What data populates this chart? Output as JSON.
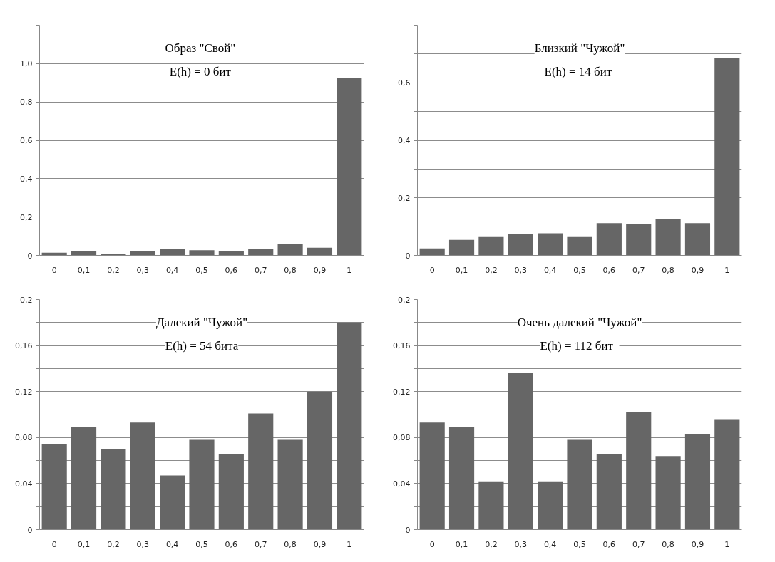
{
  "chart_data": [
    {
      "type": "bar",
      "categories": [
        "0",
        "0,1",
        "0,2",
        "0,3",
        "0,4",
        "0,5",
        "0,6",
        "0,7",
        "0,8",
        "0,9",
        "1"
      ],
      "values": [
        0.014,
        0.02,
        0.007,
        0.02,
        0.034,
        0.027,
        0.02,
        0.034,
        0.06,
        0.04,
        0.924
      ],
      "color": "#666666",
      "ylim": [
        0,
        1.2
      ],
      "yticks": [
        {
          "value": 0,
          "label": "0"
        },
        {
          "value": 0.2,
          "label": "0,2"
        },
        {
          "value": 0.4,
          "label": "0,4"
        },
        {
          "value": 0.6,
          "label": "0,6"
        },
        {
          "value": 0.8,
          "label": "0,8"
        },
        {
          "value": 1.0,
          "label": "1,0"
        },
        {
          "value": 1.2,
          "label": null
        }
      ],
      "grid": "y",
      "annotations": [
        "Образ  \"Свой\"",
        "E(h) = 0  бит"
      ]
    },
    {
      "type": "bar",
      "categories": [
        "0",
        "0,1",
        "0,2",
        "0,3",
        "0,4",
        "0,5",
        "0,6",
        "0,7",
        "0,8",
        "0,9",
        "1"
      ],
      "values": [
        0.024,
        0.054,
        0.064,
        0.074,
        0.077,
        0.064,
        0.112,
        0.108,
        0.126,
        0.112,
        0.686
      ],
      "color": "#666666",
      "ylim": [
        0,
        0.8
      ],
      "yticks": [
        {
          "value": 0,
          "label": "0"
        },
        {
          "value": 0.1,
          "label": null
        },
        {
          "value": 0.2,
          "label": "0,2"
        },
        {
          "value": 0.3,
          "label": null
        },
        {
          "value": 0.4,
          "label": "0,4"
        },
        {
          "value": 0.5,
          "label": null
        },
        {
          "value": 0.6,
          "label": "0,6"
        },
        {
          "value": 0.7,
          "label": null
        },
        {
          "value": 0.8,
          "label": null
        }
      ],
      "grid": "y",
      "annotations": [
        "Близкий \"Чужой\"",
        "E(h) = 14  бит"
      ]
    },
    {
      "type": "bar",
      "categories": [
        "0",
        "0,1",
        "0,2",
        "0,3",
        "0,4",
        "0,5",
        "0,6",
        "0,7",
        "0,8",
        "0,9",
        "1"
      ],
      "values": [
        0.074,
        0.089,
        0.07,
        0.093,
        0.047,
        0.078,
        0.066,
        0.101,
        0.078,
        0.12,
        0.18
      ],
      "color": "#666666",
      "ylim": [
        0,
        0.2
      ],
      "yticks": [
        {
          "value": 0,
          "label": "0"
        },
        {
          "value": 0.02,
          "label": null
        },
        {
          "value": 0.04,
          "label": "0,04"
        },
        {
          "value": 0.06,
          "label": null
        },
        {
          "value": 0.08,
          "label": "0,08"
        },
        {
          "value": 0.1,
          "label": null
        },
        {
          "value": 0.12,
          "label": "0,12"
        },
        {
          "value": 0.14,
          "label": null
        },
        {
          "value": 0.16,
          "label": "0,16"
        },
        {
          "value": 0.18,
          "label": null
        },
        {
          "value": 0.2,
          "label": "0,2"
        }
      ],
      "grid": "y",
      "annotations": [
        "Далекий \"Чужой\"",
        "E(h) = 54 бита"
      ]
    },
    {
      "type": "bar",
      "categories": [
        "0",
        "0,1",
        "0,2",
        "0,3",
        "0,4",
        "0,5",
        "0,6",
        "0,7",
        "0,8",
        "0,9",
        "1"
      ],
      "values": [
        0.093,
        0.089,
        0.042,
        0.136,
        0.042,
        0.078,
        0.066,
        0.102,
        0.064,
        0.083,
        0.096
      ],
      "color": "#666666",
      "ylim": [
        0,
        0.2
      ],
      "yticks": [
        {
          "value": 0,
          "label": "0"
        },
        {
          "value": 0.02,
          "label": null
        },
        {
          "value": 0.04,
          "label": "0,04"
        },
        {
          "value": 0.06,
          "label": null
        },
        {
          "value": 0.08,
          "label": "0,08"
        },
        {
          "value": 0.1,
          "label": null
        },
        {
          "value": 0.12,
          "label": "0,12"
        },
        {
          "value": 0.14,
          "label": null
        },
        {
          "value": 0.16,
          "label": "0,16"
        },
        {
          "value": 0.18,
          "label": null
        },
        {
          "value": 0.2,
          "label": "0,2"
        }
      ],
      "grid": "y",
      "annotations": [
        "Очень далекий \"Чужой\"",
        "E(h) = 112   бит"
      ]
    }
  ]
}
